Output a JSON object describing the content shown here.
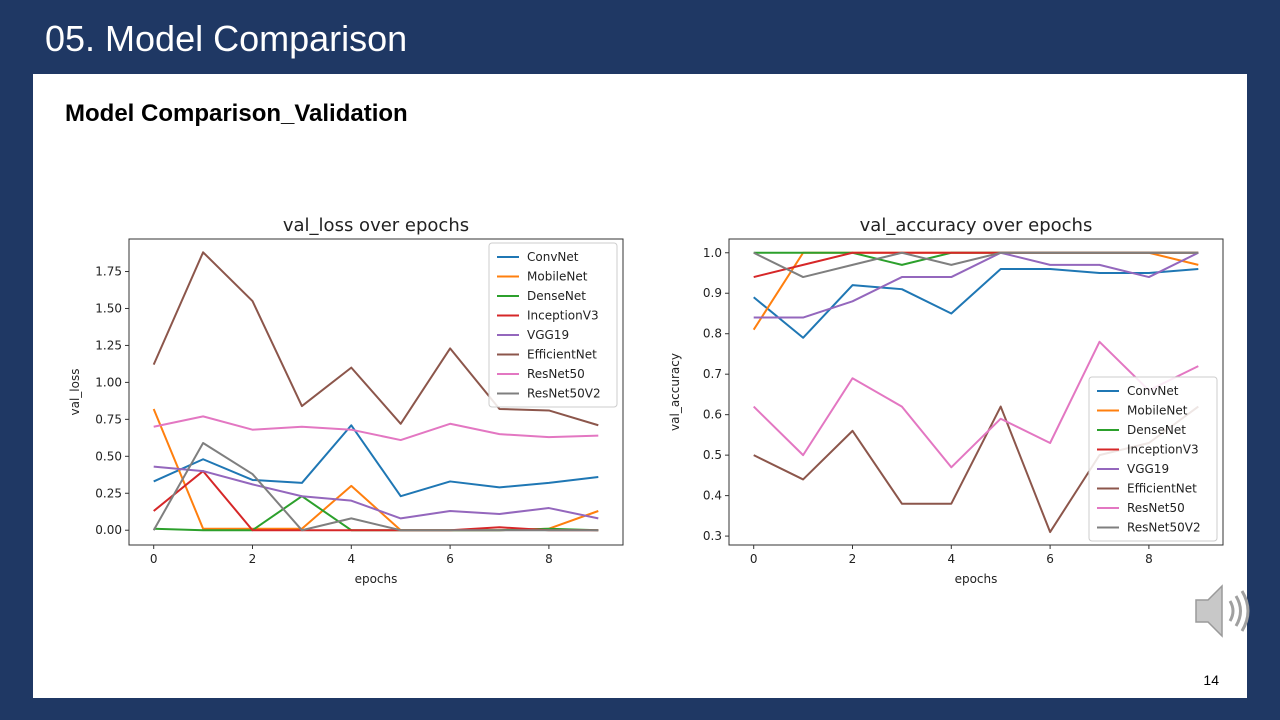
{
  "slide": {
    "title": "05. Model Comparison",
    "subtitle": "Model Comparison_Validation",
    "page_number": "14"
  },
  "icons": {
    "speaker": "speaker-audio-icon"
  },
  "colors": {
    "background": "#1f3864",
    "ConvNet": "#1f77b4",
    "MobileNet": "#ff7f0e",
    "DenseNet": "#2ca02c",
    "InceptionV3": "#d62728",
    "VGG19": "#9467bd",
    "EfficientNet": "#8c564b",
    "ResNet50": "#e377c2",
    "ResNet50V2": "#7f7f7f"
  },
  "chart_data": [
    {
      "id": "loss",
      "type": "line",
      "title": "val_loss over epochs",
      "xlabel": "epochs",
      "ylabel": "val_loss",
      "x": [
        0,
        1,
        2,
        3,
        4,
        5,
        6,
        7,
        8,
        9
      ],
      "xlim": [
        -0.5,
        9.5
      ],
      "ylim": [
        -0.1,
        1.97
      ],
      "xticks": [
        0,
        2,
        4,
        6,
        8
      ],
      "yticks": [
        0.0,
        0.25,
        0.5,
        0.75,
        1.0,
        1.25,
        1.5,
        1.75
      ],
      "ytick_labels": [
        "0.00",
        "0.25",
        "0.50",
        "0.75",
        "1.00",
        "1.25",
        "1.50",
        "1.75"
      ],
      "legend_position": "top-right",
      "grid": false,
      "series": [
        {
          "name": "ConvNet",
          "values": [
            0.33,
            0.48,
            0.34,
            0.32,
            0.71,
            0.23,
            0.33,
            0.29,
            0.32,
            0.36
          ]
        },
        {
          "name": "MobileNet",
          "values": [
            0.82,
            0.01,
            0.01,
            0.01,
            0.3,
            0.0,
            0.0,
            0.0,
            0.01,
            0.13
          ]
        },
        {
          "name": "DenseNet",
          "values": [
            0.01,
            0.0,
            0.0,
            0.23,
            0.0,
            0.0,
            0.0,
            0.0,
            0.01,
            0.0
          ]
        },
        {
          "name": "InceptionV3",
          "values": [
            0.13,
            0.4,
            0.0,
            0.0,
            0.0,
            0.0,
            0.0,
            0.02,
            0.0,
            0.0
          ]
        },
        {
          "name": "VGG19",
          "values": [
            0.43,
            0.4,
            0.31,
            0.23,
            0.2,
            0.08,
            0.13,
            0.11,
            0.15,
            0.08
          ]
        },
        {
          "name": "EfficientNet",
          "values": [
            1.12,
            1.88,
            1.55,
            0.84,
            1.1,
            0.72,
            1.23,
            0.82,
            0.81,
            0.71
          ]
        },
        {
          "name": "ResNet50",
          "values": [
            0.7,
            0.77,
            0.68,
            0.7,
            0.68,
            0.61,
            0.72,
            0.65,
            0.63,
            0.64
          ]
        },
        {
          "name": "ResNet50V2",
          "values": [
            0.0,
            0.59,
            0.38,
            0.0,
            0.08,
            0.0,
            0.0,
            0.0,
            0.0,
            0.0
          ]
        }
      ]
    },
    {
      "id": "acc",
      "type": "line",
      "title": "val_accuracy over epochs",
      "xlabel": "epochs",
      "ylabel": "val_accuracy",
      "x": [
        0,
        1,
        2,
        3,
        4,
        5,
        6,
        7,
        8,
        9
      ],
      "xlim": [
        -0.5,
        9.5
      ],
      "ylim": [
        0.278,
        1.034
      ],
      "xticks": [
        0,
        2,
        4,
        6,
        8
      ],
      "yticks": [
        0.3,
        0.4,
        0.5,
        0.6,
        0.7,
        0.8,
        0.9,
        1.0
      ],
      "ytick_labels": [
        "0.3",
        "0.4",
        "0.5",
        "0.6",
        "0.7",
        "0.8",
        "0.9",
        "1.0"
      ],
      "legend_position": "lower-right",
      "grid": false,
      "series": [
        {
          "name": "ConvNet",
          "values": [
            0.89,
            0.79,
            0.92,
            0.91,
            0.85,
            0.96,
            0.96,
            0.95,
            0.95,
            0.96
          ]
        },
        {
          "name": "MobileNet",
          "values": [
            0.81,
            1.0,
            1.0,
            1.0,
            1.0,
            1.0,
            1.0,
            1.0,
            1.0,
            0.97
          ]
        },
        {
          "name": "DenseNet",
          "values": [
            1.0,
            1.0,
            1.0,
            0.97,
            1.0,
            1.0,
            1.0,
            1.0,
            1.0,
            1.0
          ]
        },
        {
          "name": "InceptionV3",
          "values": [
            0.94,
            0.97,
            1.0,
            1.0,
            1.0,
            1.0,
            1.0,
            1.0,
            1.0,
            1.0
          ]
        },
        {
          "name": "VGG19",
          "values": [
            0.84,
            0.84,
            0.88,
            0.94,
            0.94,
            1.0,
            0.97,
            0.97,
            0.94,
            1.0
          ]
        },
        {
          "name": "EfficientNet",
          "values": [
            0.5,
            0.44,
            0.56,
            0.38,
            0.38,
            0.62,
            0.31,
            0.5,
            0.53,
            0.62
          ]
        },
        {
          "name": "ResNet50",
          "values": [
            0.62,
            0.5,
            0.69,
            0.62,
            0.47,
            0.59,
            0.53,
            0.78,
            0.66,
            0.72
          ]
        },
        {
          "name": "ResNet50V2",
          "values": [
            1.0,
            0.94,
            0.97,
            1.0,
            0.97,
            1.0,
            1.0,
            1.0,
            1.0,
            1.0
          ]
        }
      ]
    }
  ]
}
